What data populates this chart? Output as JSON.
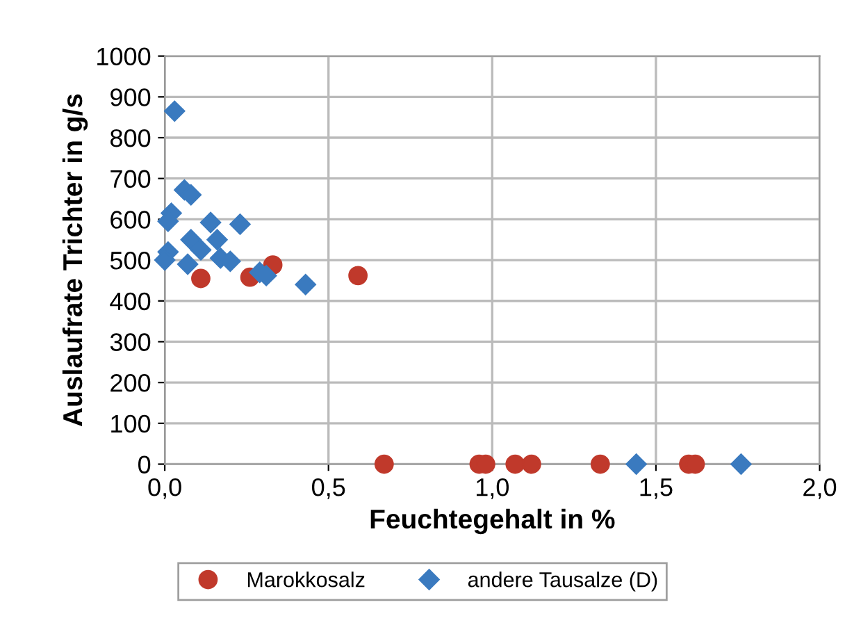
{
  "chart_data": {
    "type": "scatter",
    "xlabel": "Feuchtegehalt in %",
    "ylabel": "Auslaufrate Trichter in g/s",
    "xlim": [
      0,
      2
    ],
    "xticks": [
      {
        "value": 0,
        "label": "0,0"
      },
      {
        "value": 0.5,
        "label": "0,5"
      },
      {
        "value": 1,
        "label": "1,0"
      },
      {
        "value": 1.5,
        "label": "1,5"
      },
      {
        "value": 2,
        "label": "2,0"
      }
    ],
    "ylim": [
      0,
      1000
    ],
    "yticks": [
      0,
      100,
      200,
      300,
      400,
      500,
      600,
      700,
      800,
      900,
      1000
    ],
    "grid": true,
    "legend": "bottom",
    "series": [
      {
        "name": "Marokkosalz",
        "color": "#c0392b",
        "marker": "circle",
        "x": [
          0.11,
          0.26,
          0.33,
          0.59,
          0.67,
          0.96,
          0.98,
          1.07,
          1.12,
          1.33,
          1.6,
          1.62
        ],
        "values": [
          455,
          458,
          488,
          462,
          0,
          0,
          0,
          0,
          0,
          0,
          0,
          0
        ]
      },
      {
        "name": "andere Tausalze (D)",
        "color": "#3a7abf",
        "marker": "diamond",
        "x": [
          0.03,
          0.06,
          0.08,
          0.02,
          0.01,
          0.14,
          0.23,
          0.08,
          0.11,
          0.16,
          0.01,
          0.0,
          0.07,
          0.17,
          0.2,
          0.29,
          0.31,
          0.43,
          1.44,
          1.76
        ],
        "values": [
          865,
          672,
          660,
          615,
          595,
          592,
          588,
          550,
          525,
          550,
          520,
          500,
          490,
          505,
          497,
          470,
          462,
          440,
          0,
          0
        ]
      }
    ]
  }
}
